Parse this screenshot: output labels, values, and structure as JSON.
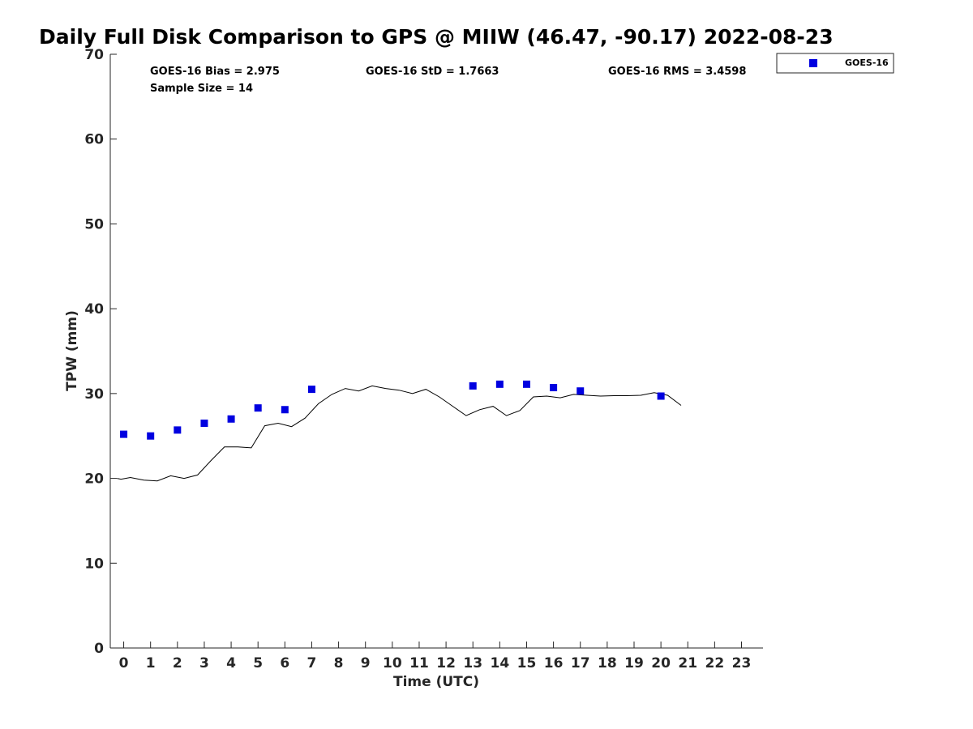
{
  "chart_data": {
    "type": "scatter",
    "title": "Daily Full Disk Comparison to GPS @ MIIW (46.47, -90.17) 2022-08-23",
    "xlabel": "Time (UTC)",
    "ylabel": "TPW (mm)",
    "xlim": [
      -0.5,
      23.8
    ],
    "ylim": [
      0,
      70
    ],
    "x_ticks": [
      0,
      1,
      2,
      3,
      4,
      5,
      6,
      7,
      8,
      9,
      10,
      11,
      12,
      13,
      14,
      15,
      16,
      17,
      18,
      19,
      20,
      21,
      22,
      23
    ],
    "y_ticks": [
      0,
      10,
      20,
      30,
      40,
      50,
      60,
      70
    ],
    "grid": false,
    "legend_position": "top-right",
    "stats": {
      "bias": "GOES-16 Bias = 2.975",
      "std": "GOES-16 StD = 1.7663",
      "rms": "GOES-16 RMS = 3.4598",
      "sample_size": "Sample Size = 14"
    },
    "series": [
      {
        "name": "GOES-16",
        "style": "square-markers",
        "color": "#0000e0",
        "points": [
          [
            0.0,
            25.2
          ],
          [
            1.0,
            25.0
          ],
          [
            2.0,
            25.7
          ],
          [
            3.0,
            26.5
          ],
          [
            4.0,
            27.0
          ],
          [
            5.0,
            28.3
          ],
          [
            6.0,
            28.1
          ],
          [
            7.0,
            30.5
          ],
          [
            13.0,
            30.9
          ],
          [
            14.0,
            31.1
          ],
          [
            15.0,
            31.1
          ],
          [
            16.0,
            30.7
          ],
          [
            17.0,
            30.3
          ],
          [
            20.0,
            29.7
          ]
        ]
      },
      {
        "style": "line",
        "color": "#000000",
        "points": [
          [
            -0.25,
            20.0
          ],
          [
            -0.1,
            19.9
          ],
          [
            0.25,
            20.1
          ],
          [
            0.75,
            19.8
          ],
          [
            1.25,
            19.7
          ],
          [
            1.75,
            20.3
          ],
          [
            2.25,
            20.0
          ],
          [
            2.75,
            20.4
          ],
          [
            3.25,
            22.1
          ],
          [
            3.75,
            23.7
          ],
          [
            4.25,
            23.7
          ],
          [
            4.75,
            23.6
          ],
          [
            5.25,
            26.2
          ],
          [
            5.75,
            26.5
          ],
          [
            6.25,
            26.1
          ],
          [
            6.75,
            27.1
          ],
          [
            7.25,
            28.8
          ],
          [
            7.75,
            29.9
          ],
          [
            8.25,
            30.6
          ],
          [
            8.75,
            30.3
          ],
          [
            9.25,
            30.9
          ],
          [
            9.75,
            30.6
          ],
          [
            10.25,
            30.4
          ],
          [
            10.75,
            30.0
          ],
          [
            11.25,
            30.5
          ],
          [
            11.75,
            29.6
          ],
          [
            12.25,
            28.5
          ],
          [
            12.75,
            27.4
          ],
          [
            13.25,
            28.1
          ],
          [
            13.75,
            28.5
          ],
          [
            14.25,
            27.4
          ],
          [
            14.75,
            28.0
          ],
          [
            15.25,
            29.6
          ],
          [
            15.75,
            29.7
          ],
          [
            16.25,
            29.5
          ],
          [
            16.75,
            29.9
          ],
          [
            17.25,
            29.8
          ],
          [
            17.75,
            29.7
          ],
          [
            18.25,
            29.75
          ],
          [
            18.75,
            29.75
          ],
          [
            19.25,
            29.8
          ],
          [
            19.75,
            30.1
          ],
          [
            20.25,
            29.8
          ],
          [
            20.75,
            28.6
          ]
        ]
      }
    ]
  }
}
